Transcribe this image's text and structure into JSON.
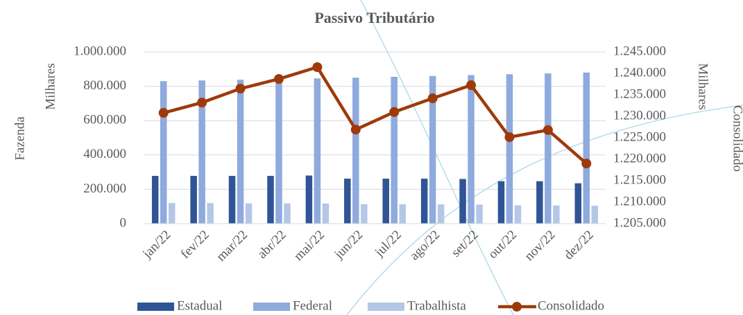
{
  "chart_data": {
    "type": "bar",
    "title": "Passivo Tributário",
    "y_label": "Fazenda",
    "y_unit_label": "Milhares",
    "y2_unit_label": "Milhares",
    "y2_label": "Consolidado",
    "categories": [
      "jan/22",
      "fev/22",
      "mar/22",
      "abr/22",
      "mai/22",
      "jun/22",
      "jul/22",
      "ago/22",
      "set/22",
      "out/22",
      "nov/22",
      "dez/22"
    ],
    "series": [
      {
        "name": "Estadual",
        "color": "#2f5597",
        "values": [
          278000,
          278000,
          278000,
          278000,
          280000,
          262000,
          262000,
          262000,
          260000,
          247000,
          247000,
          235000
        ]
      },
      {
        "name": "Federal",
        "color": "#8faadc",
        "values": [
          830000,
          834000,
          838000,
          842000,
          846000,
          850000,
          855000,
          860000,
          865000,
          870000,
          875000,
          880000
        ]
      },
      {
        "name": "Trabalhista",
        "color": "#b4c7e7",
        "values": [
          120000,
          120000,
          118000,
          118000,
          117000,
          113000,
          113000,
          112000,
          111000,
          107000,
          106000,
          104000
        ]
      },
      {
        "name": "Consolidado",
        "color": "#9e3a0a",
        "type": "line",
        "axis": "y2",
        "values": [
          1230800,
          1233200,
          1236450,
          1238700,
          1241450,
          1226900,
          1231000,
          1234200,
          1237250,
          1225150,
          1226800,
          1219000
        ]
      }
    ],
    "ylim": [
      0,
      1000000
    ],
    "yticks": [
      0,
      {
        "value": 200000,
        "label": "200.000"
      },
      {
        "value": 400000,
        "label": "400.000"
      },
      {
        "value": 600000,
        "label": "600.000"
      },
      {
        "value": 800000,
        "label": "800.000"
      },
      {
        "value": 1000000,
        "label": "1.000.000"
      }
    ],
    "y2lim": [
      1205000,
      1245000
    ],
    "y2ticks": [
      {
        "value": 1205000,
        "label": "1.205.000"
      },
      {
        "value": 1210000,
        "label": "1.210.000"
      },
      {
        "value": 1215000,
        "label": "1.215.000"
      },
      {
        "value": 1220000,
        "label": "1.220.000"
      },
      {
        "value": 1225000,
        "label": "1.225.000"
      },
      {
        "value": 1230000,
        "label": "1.230.000"
      },
      {
        "value": 1235000,
        "label": "1.235.000"
      },
      {
        "value": 1240000,
        "label": "1.240.000"
      },
      {
        "value": 1245000,
        "label": "1.245.000"
      }
    ],
    "grid": true,
    "legend": "bottom"
  }
}
